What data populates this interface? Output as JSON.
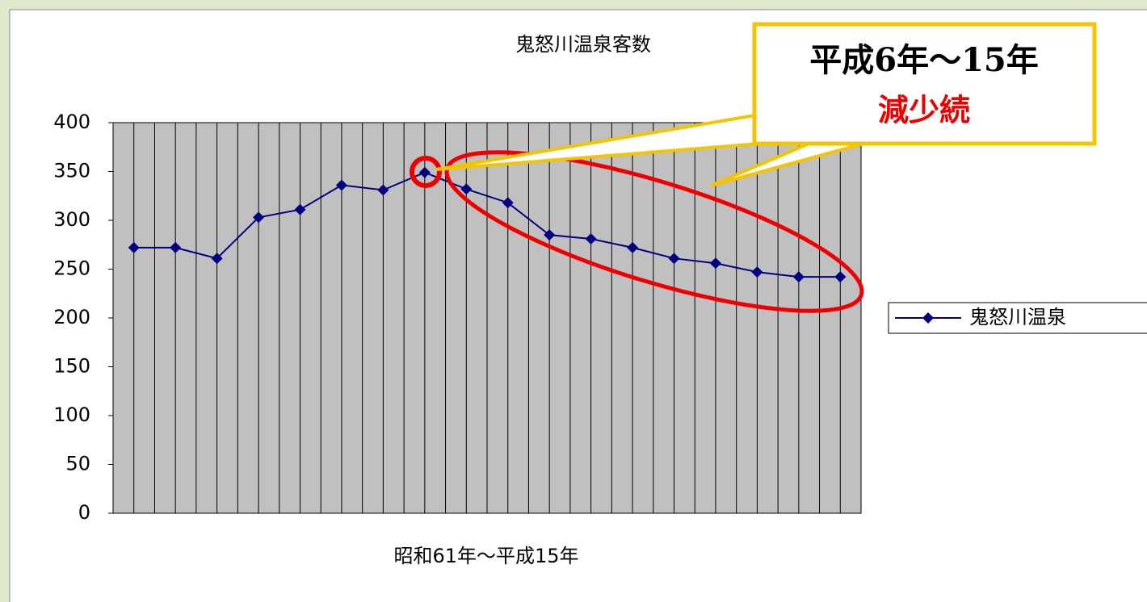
{
  "chart_data": {
    "type": "line",
    "title": "鬼怒川温泉客数",
    "x_label": "昭和61年～平成15年",
    "categories": [
      null,
      null,
      null,
      null,
      null,
      null,
      null,
      null,
      null,
      null,
      null,
      null,
      null,
      null,
      null,
      null,
      null,
      null
    ],
    "series": [
      {
        "name": "鬼怒川温泉",
        "color": "#000080",
        "values": [
          272,
          272,
          261,
          303,
          311,
          336,
          331,
          349,
          332,
          318,
          285,
          281,
          272,
          261,
          256,
          247,
          242,
          242
        ]
      }
    ],
    "ylim": [
      0,
      400
    ],
    "yticks": [
      0,
      50,
      100,
      150,
      200,
      250,
      300,
      350,
      400
    ],
    "grid": false,
    "legend": "right",
    "plot_background": "#c0c0c0",
    "annotations": [
      "平成6年～15年",
      "減少続"
    ]
  }
}
